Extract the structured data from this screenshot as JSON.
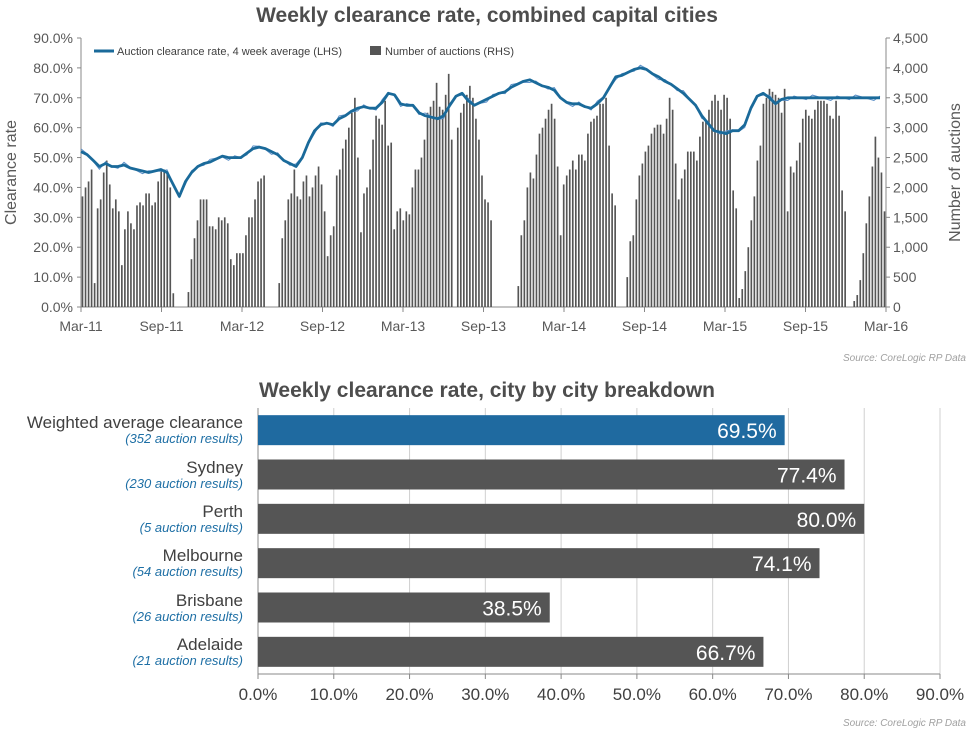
{
  "chart1": {
    "title": "Weekly clearance rate, combined capital cities",
    "source": "Source: CoreLogic  RP Data",
    "ylabel_left": "Clearance rate",
    "ylabel_right": "Number of auctions",
    "legend": [
      "Auction clearance rate, 4 week average (LHS)",
      "Number of auctions (RHS)"
    ]
  },
  "chart2": {
    "title": "Weekly clearance rate, city by city breakdown",
    "source": "Source: CoreLogic  RP Data"
  },
  "colors": {
    "line": "#1a6a9a",
    "thin_line": "#5b8fc7",
    "bar": "#555555",
    "highlight": "#1f6aa0",
    "axis": "#888888"
  },
  "chart_data": [
    {
      "type": "bar",
      "title": "Weekly clearance rate, combined capital cities",
      "xlabel": "",
      "ylabel": "Clearance rate",
      "y2label": "Number of auctions",
      "x_tick_labels": [
        "Mar-11",
        "Sep-11",
        "Mar-12",
        "Sep-12",
        "Mar-13",
        "Sep-13",
        "Mar-14",
        "Sep-14",
        "Mar-15",
        "Sep-15",
        "Mar-16"
      ],
      "y_tick_labels": [
        "0.0%",
        "10.0%",
        "20.0%",
        "30.0%",
        "40.0%",
        "50.0%",
        "60.0%",
        "70.0%",
        "80.0%",
        "90.0%"
      ],
      "y2_tick_labels": [
        "0",
        "500",
        "1,000",
        "1,500",
        "2,000",
        "2,500",
        "3,000",
        "3,500",
        "4,000",
        "4,500"
      ],
      "ylim": [
        0,
        90
      ],
      "y2lim": [
        0,
        4500
      ],
      "legend_position": "top-left",
      "series": [
        {
          "name": "Auction clearance rate, 4 week average (LHS)",
          "kind": "line",
          "axis": "left",
          "x": [
            0,
            2,
            4,
            6,
            8,
            10,
            12,
            14,
            16,
            18,
            20,
            22,
            24,
            26,
            28,
            30,
            32,
            34,
            36,
            38,
            40,
            42,
            44,
            46,
            48,
            50,
            52,
            54,
            56,
            58,
            60,
            62,
            64,
            66,
            68,
            70,
            72,
            74,
            76,
            78,
            80,
            82,
            84,
            86,
            88,
            90,
            92,
            94,
            96,
            98,
            100,
            102,
            104,
            106,
            108,
            110,
            112,
            114,
            116,
            118,
            120,
            122,
            124,
            126,
            128,
            130,
            132,
            134,
            136,
            138,
            140,
            142,
            144,
            146,
            148,
            150,
            152,
            154,
            156,
            158,
            160,
            162,
            164,
            166,
            168,
            170,
            172,
            174,
            176,
            178,
            180,
            182,
            184,
            186,
            188,
            190,
            192,
            194,
            196,
            198,
            200,
            202,
            204,
            206,
            208,
            210,
            212,
            214,
            216,
            218,
            220,
            222,
            224,
            226,
            228,
            230,
            232,
            234,
            236,
            238,
            240,
            242,
            244,
            246,
            248,
            250,
            252,
            254,
            256,
            258,
            260
          ],
          "y": [
            52,
            51,
            49,
            47,
            48,
            47,
            47,
            47.5,
            46.5,
            46,
            45.5,
            45,
            45.5,
            46,
            45,
            41,
            37,
            42,
            45,
            47,
            48,
            48.5,
            49.5,
            50.5,
            50,
            50,
            50,
            51.5,
            53,
            53.5,
            53,
            52,
            51,
            49,
            48,
            47,
            50,
            55,
            59,
            61,
            61.5,
            61,
            63,
            64,
            65.5,
            66.5,
            67,
            66.5,
            66.5,
            68.5,
            71.5,
            71,
            68,
            67.5,
            67.5,
            65,
            64,
            63.5,
            63,
            64,
            67.5,
            70.5,
            71.5,
            69,
            67.5,
            68.5,
            69.5,
            70.5,
            71.5,
            72,
            73.5,
            74.5,
            75.5,
            76,
            75,
            74,
            73.5,
            72.5,
            70,
            68.5,
            68,
            68,
            67,
            66.5,
            68,
            70,
            73.5,
            77,
            77.5,
            78.5,
            79.5,
            80,
            79.5,
            78,
            77,
            75.5,
            74.5,
            73,
            71.5,
            69.5,
            67.5,
            64,
            61.5,
            59,
            58.5,
            58,
            59,
            59,
            61,
            66.5,
            70.5,
            71.5,
            70,
            68,
            69.5,
            70,
            70,
            70,
            70,
            70,
            70,
            70,
            70,
            70,
            70,
            70,
            70,
            70,
            70,
            70,
            70
          ]
        },
        {
          "name": "Number of auctions (RHS)",
          "kind": "bar",
          "axis": "right",
          "values": [
            1850,
            2000,
            2100,
            2300,
            400,
            1650,
            1800,
            2250,
            2450,
            2050,
            1650,
            1800,
            1600,
            700,
            1300,
            1600,
            1400,
            1300,
            1700,
            1750,
            1700,
            1900,
            1900,
            1700,
            1750,
            2100,
            2300,
            2300,
            2250,
            2000,
            230,
            0,
            0,
            0,
            0,
            250,
            800,
            1150,
            1450,
            1800,
            1800,
            1800,
            1350,
            1350,
            1300,
            1500,
            1450,
            1500,
            1400,
            800,
            700,
            900,
            900,
            900,
            1200,
            1500,
            1500,
            1800,
            2100,
            2150,
            2200,
            0,
            0,
            0,
            0,
            400,
            1150,
            1450,
            1800,
            1900,
            2300,
            1850,
            1800,
            2100,
            2200,
            1850,
            2000,
            2200,
            2350,
            2050,
            1600,
            850,
            1200,
            1350,
            2200,
            2300,
            2650,
            2800,
            3000,
            3250,
            3500,
            2500,
            1250,
            1900,
            2000,
            2300,
            2800,
            3200,
            3150,
            3050,
            3450,
            2700,
            2750,
            1300,
            1600,
            1650,
            1450,
            1600,
            1550,
            2000,
            2300,
            2300,
            2500,
            2800,
            3250,
            3350,
            3450,
            3750,
            3350,
            3300,
            3550,
            3900,
            2800,
            0,
            3000,
            3250,
            3400,
            3550,
            3700,
            3500,
            3150,
            2800,
            2200,
            1800,
            1750,
            1450,
            0,
            0,
            0,
            0,
            0,
            0,
            0,
            0,
            350,
            1200,
            1450,
            2000,
            2250,
            2150,
            2550,
            2900,
            3000,
            3150,
            3300,
            3400,
            3150,
            2350,
            1200,
            2050,
            2200,
            2300,
            2450,
            2300,
            2550,
            2550,
            2450,
            2900,
            3100,
            3150,
            3200,
            3400,
            3400,
            3500,
            2700,
            1900,
            1700,
            0,
            0,
            0,
            500,
            1100,
            1200,
            1800,
            2200,
            2400,
            2600,
            2700,
            2900,
            3000,
            3050,
            3050,
            2900,
            3150,
            3500,
            3300,
            2400,
            1800,
            2150,
            2300,
            2600,
            2600,
            2600,
            2450,
            2850,
            3100,
            3100,
            3300,
            3450,
            3550,
            3450,
            3300,
            3550,
            3500,
            3150,
            1950,
            1650,
            150,
            300,
            600,
            1000,
            1450,
            1850,
            2450,
            2700,
            3400,
            3500,
            3650,
            3600,
            3550,
            3500,
            3250,
            3650,
            1600,
            2350,
            2250,
            2450,
            2750,
            3150,
            3300,
            3200,
            3150,
            3300,
            3450,
            3450,
            3450,
            3400,
            3200,
            3150,
            3450,
            3200,
            1950,
            1600,
            0,
            0,
            100,
            200,
            450,
            900,
            1400,
            1850,
            2350,
            2850,
            2500,
            2250,
            1600
          ]
        }
      ]
    },
    {
      "type": "bar",
      "orientation": "horizontal",
      "title": "Weekly clearance rate, city by city breakdown",
      "xlabel": "",
      "ylabel": "",
      "xlim": [
        0,
        90
      ],
      "x_tick_labels": [
        "0.0%",
        "10.0%",
        "20.0%",
        "30.0%",
        "40.0%",
        "50.0%",
        "60.0%",
        "70.0%",
        "80.0%",
        "90.0%"
      ],
      "categories": [
        "Weighted average clearance",
        "Sydney",
        "Perth",
        "Melbourne",
        "Brisbane",
        "Adelaide"
      ],
      "subtitles": [
        "(352 auction results)",
        "(230 auction results)",
        "(5 auction results)",
        "(54 auction results)",
        "(26 auction results)",
        "(21 auction results)"
      ],
      "values": [
        69.5,
        77.4,
        80.0,
        74.1,
        38.5,
        66.7
      ],
      "value_labels": [
        "69.5%",
        "77.4%",
        "80.0%",
        "74.1%",
        "38.5%",
        "66.7%"
      ],
      "highlight_index": 0
    }
  ]
}
